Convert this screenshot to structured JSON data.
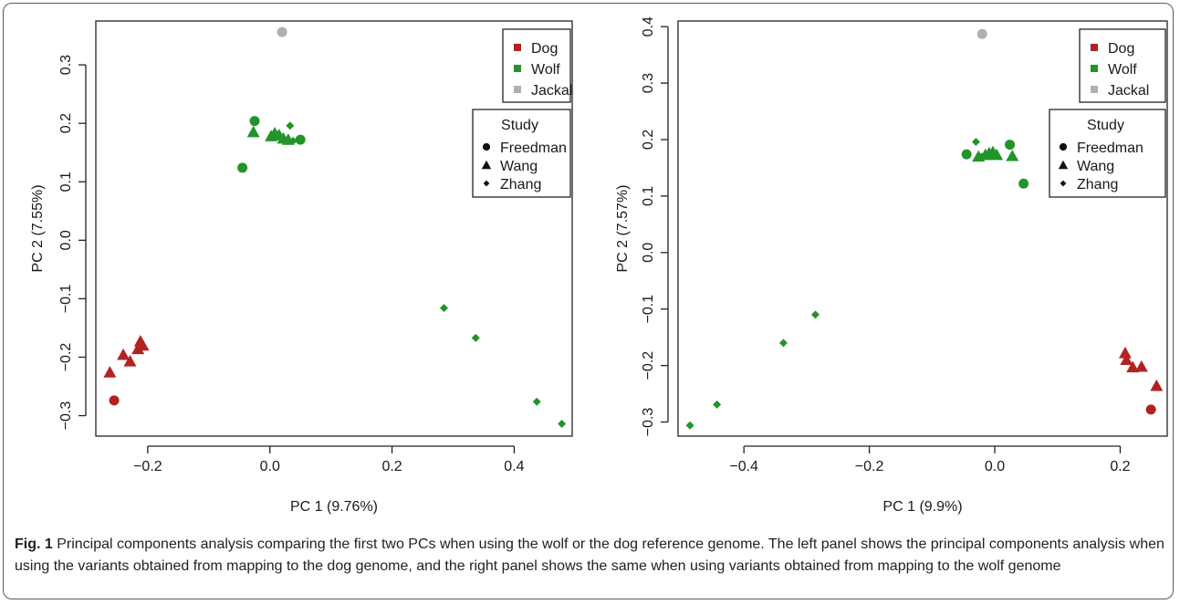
{
  "figure": {
    "caption_label": "Fig. 1",
    "caption_text": " Principal components analysis comparing the first two PCs when using the wolf or the dog reference genome. The left panel shows the principal components analysis when using the variants obtained from mapping to the dog genome, and the right panel shows the same when using variants obtained from mapping to the wolf genome"
  },
  "chart_data": [
    {
      "type": "scatter",
      "panel": "left",
      "xlabel": "PC 1 (9.76%)",
      "ylabel": "PC 2 (7.55%)",
      "xlim": [
        -0.285,
        0.495
      ],
      "ylim": [
        -0.335,
        0.375
      ],
      "xticks": [
        -0.2,
        0.0,
        0.2,
        0.4
      ],
      "xtick_labels": [
        "−0.2",
        "0.0",
        "0.2",
        "0.4"
      ],
      "yticks": [
        -0.3,
        -0.2,
        -0.1,
        0.0,
        0.1,
        0.2,
        0.3
      ],
      "ytick_labels": [
        "−0.3",
        "−0.2",
        "−0.1",
        "0.0",
        "0.1",
        "0.2",
        "0.3"
      ],
      "legend_groups": {
        "position": "top-right",
        "items": [
          {
            "label": "Dog",
            "color": "#b22222"
          },
          {
            "label": "Wolf",
            "color": "#22942a"
          },
          {
            "label": "Jackal",
            "color": "#b0b0b0"
          }
        ]
      },
      "legend_study": {
        "title": "Study",
        "items": [
          {
            "label": "Freedman",
            "shape": "circle"
          },
          {
            "label": "Wang",
            "shape": "triangle"
          },
          {
            "label": "Zhang",
            "shape": "diamond"
          }
        ]
      },
      "points": [
        {
          "x": 0.02,
          "y": 0.356,
          "group": "Jackal",
          "shape": "circle"
        },
        {
          "x": -0.025,
          "y": 0.204,
          "group": "Wolf",
          "shape": "circle"
        },
        {
          "x": -0.045,
          "y": 0.124,
          "group": "Wolf",
          "shape": "circle"
        },
        {
          "x": 0.05,
          "y": 0.172,
          "group": "Wolf",
          "shape": "circle"
        },
        {
          "x": -0.027,
          "y": 0.185,
          "group": "Wolf",
          "shape": "triangle"
        },
        {
          "x": 0.002,
          "y": 0.178,
          "group": "Wolf",
          "shape": "triangle"
        },
        {
          "x": 0.008,
          "y": 0.183,
          "group": "Wolf",
          "shape": "triangle"
        },
        {
          "x": 0.015,
          "y": 0.18,
          "group": "Wolf",
          "shape": "triangle"
        },
        {
          "x": 0.022,
          "y": 0.174,
          "group": "Wolf",
          "shape": "triangle"
        },
        {
          "x": 0.03,
          "y": 0.172,
          "group": "Wolf",
          "shape": "triangle"
        },
        {
          "x": 0.033,
          "y": 0.196,
          "group": "Wolf",
          "shape": "diamond"
        },
        {
          "x": 0.038,
          "y": 0.17,
          "group": "Wolf",
          "shape": "diamond"
        },
        {
          "x": 0.285,
          "y": -0.116,
          "group": "Wolf",
          "shape": "diamond"
        },
        {
          "x": 0.337,
          "y": -0.167,
          "group": "Wolf",
          "shape": "diamond"
        },
        {
          "x": 0.437,
          "y": -0.276,
          "group": "Wolf",
          "shape": "diamond"
        },
        {
          "x": 0.478,
          "y": -0.314,
          "group": "Wolf",
          "shape": "diamond"
        },
        {
          "x": -0.255,
          "y": -0.274,
          "group": "Dog",
          "shape": "circle"
        },
        {
          "x": -0.262,
          "y": -0.226,
          "group": "Dog",
          "shape": "triangle"
        },
        {
          "x": -0.24,
          "y": -0.196,
          "group": "Dog",
          "shape": "triangle"
        },
        {
          "x": -0.229,
          "y": -0.207,
          "group": "Dog",
          "shape": "triangle"
        },
        {
          "x": -0.216,
          "y": -0.186,
          "group": "Dog",
          "shape": "triangle"
        },
        {
          "x": -0.212,
          "y": -0.173,
          "group": "Dog",
          "shape": "triangle"
        },
        {
          "x": -0.208,
          "y": -0.18,
          "group": "Dog",
          "shape": "triangle"
        }
      ]
    },
    {
      "type": "scatter",
      "panel": "right",
      "xlabel": "PC 1 (9.9%)",
      "ylabel": "PC 2 (7.57%)",
      "xlim": [
        -0.505,
        0.275
      ],
      "ylim": [
        -0.325,
        0.41
      ],
      "xticks": [
        -0.4,
        -0.2,
        0.0,
        0.2
      ],
      "xtick_labels": [
        "−0.4",
        "−0.2",
        "0.0",
        "0.2"
      ],
      "yticks": [
        -0.3,
        -0.2,
        -0.1,
        0.0,
        0.1,
        0.2,
        0.3,
        0.4
      ],
      "ytick_labels": [
        "−0.3",
        "−0.2",
        "−0.1",
        "0.0",
        "0.1",
        "0.2",
        "0.3",
        "0.4"
      ],
      "legend_groups": {
        "position": "top-right",
        "items": [
          {
            "label": "Dog",
            "color": "#b22222"
          },
          {
            "label": "Wolf",
            "color": "#22942a"
          },
          {
            "label": "Jackal",
            "color": "#b0b0b0"
          }
        ]
      },
      "legend_study": {
        "title": "Study",
        "items": [
          {
            "label": "Freedman",
            "shape": "circle"
          },
          {
            "label": "Wang",
            "shape": "triangle"
          },
          {
            "label": "Zhang",
            "shape": "diamond"
          }
        ]
      },
      "points": [
        {
          "x": -0.02,
          "y": 0.387,
          "group": "Jackal",
          "shape": "circle"
        },
        {
          "x": -0.045,
          "y": 0.174,
          "group": "Wolf",
          "shape": "circle"
        },
        {
          "x": 0.024,
          "y": 0.191,
          "group": "Wolf",
          "shape": "circle"
        },
        {
          "x": 0.046,
          "y": 0.122,
          "group": "Wolf",
          "shape": "circle"
        },
        {
          "x": -0.026,
          "y": 0.17,
          "group": "Wolf",
          "shape": "triangle"
        },
        {
          "x": -0.015,
          "y": 0.173,
          "group": "Wolf",
          "shape": "triangle"
        },
        {
          "x": -0.009,
          "y": 0.176,
          "group": "Wolf",
          "shape": "triangle"
        },
        {
          "x": -0.003,
          "y": 0.178,
          "group": "Wolf",
          "shape": "triangle"
        },
        {
          "x": 0.003,
          "y": 0.173,
          "group": "Wolf",
          "shape": "triangle"
        },
        {
          "x": 0.028,
          "y": 0.171,
          "group": "Wolf",
          "shape": "triangle"
        },
        {
          "x": -0.03,
          "y": 0.196,
          "group": "Wolf",
          "shape": "diamond"
        },
        {
          "x": -0.021,
          "y": 0.17,
          "group": "Wolf",
          "shape": "diamond"
        },
        {
          "x": -0.286,
          "y": -0.11,
          "group": "Wolf",
          "shape": "diamond"
        },
        {
          "x": -0.337,
          "y": -0.16,
          "group": "Wolf",
          "shape": "diamond"
        },
        {
          "x": -0.443,
          "y": -0.269,
          "group": "Wolf",
          "shape": "diamond"
        },
        {
          "x": -0.486,
          "y": -0.306,
          "group": "Wolf",
          "shape": "diamond"
        },
        {
          "x": 0.249,
          "y": -0.278,
          "group": "Dog",
          "shape": "circle"
        },
        {
          "x": 0.258,
          "y": -0.236,
          "group": "Dog",
          "shape": "triangle"
        },
        {
          "x": 0.234,
          "y": -0.202,
          "group": "Dog",
          "shape": "triangle"
        },
        {
          "x": 0.22,
          "y": -0.203,
          "group": "Dog",
          "shape": "triangle"
        },
        {
          "x": 0.21,
          "y": -0.19,
          "group": "Dog",
          "shape": "triangle"
        },
        {
          "x": 0.208,
          "y": -0.178,
          "group": "Dog",
          "shape": "triangle"
        }
      ]
    }
  ]
}
